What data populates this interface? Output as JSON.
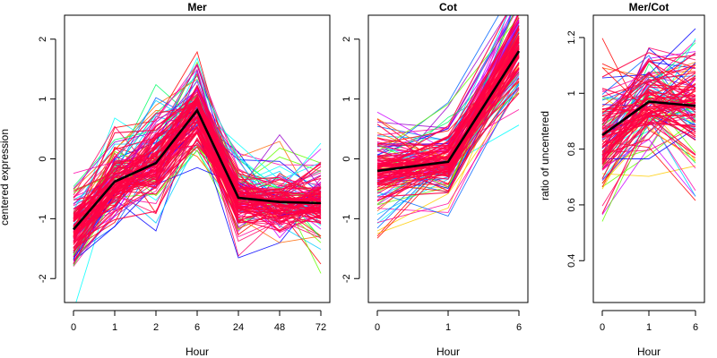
{
  "chart_data": [
    {
      "type": "line",
      "title": "Mer",
      "xlabel": "Hour",
      "ylabel": "centered expression",
      "categories": [
        "0",
        "1",
        "2",
        "6",
        "24",
        "48",
        "72"
      ],
      "ylim": [
        -2.4,
        2.4
      ],
      "yticks": [
        -2,
        -1,
        0,
        1,
        2
      ],
      "series": [
        {
          "name": "",
          "role": "mean",
          "values": [
            -1.18,
            -0.38,
            -0.07,
            0.81,
            -0.65,
            -0.72,
            -0.74
          ]
        }
      ],
      "bundle": {
        "count": 140,
        "colors": [
          "#ff0000",
          "#ff00aa",
          "#ff0066",
          "#cc00ff",
          "#0000ff",
          "#0066ff",
          "#00ccff",
          "#00ffff",
          "#00ff66",
          "#66ff00",
          "#ffcc00",
          "#ff6600",
          "#9900cc",
          "#ff0099"
        ],
        "dense_color": "#ff0044",
        "spread": [
          0.32,
          0.32,
          0.42,
          0.36,
          0.32,
          0.3,
          0.36
        ],
        "seed": 11
      }
    },
    {
      "type": "line",
      "title": "Cot",
      "xlabel": "Hour",
      "ylabel": "",
      "categories": [
        "0",
        "1",
        "6"
      ],
      "ylim": [
        -2.4,
        2.4
      ],
      "yticks": [
        -2,
        -1,
        0,
        1,
        2
      ],
      "series": [
        {
          "name": "",
          "role": "mean",
          "values": [
            -0.2,
            -0.05,
            1.8
          ]
        }
      ],
      "bundle": {
        "count": 140,
        "colors": [
          "#ff0000",
          "#ff00aa",
          "#ff0066",
          "#cc00ff",
          "#0000ff",
          "#0066ff",
          "#00ccff",
          "#00ffff",
          "#00ff66",
          "#66ff00",
          "#ffcc00",
          "#ff6600",
          "#9900cc",
          "#ff0099"
        ],
        "dense_color": "#ff0044",
        "spread": [
          0.36,
          0.3,
          0.42
        ],
        "seed": 23
      }
    },
    {
      "type": "line",
      "title": "Mer/Cot",
      "xlabel": "Hour",
      "ylabel": "ratio of uncentered",
      "categories": [
        "0",
        "1",
        "6"
      ],
      "ylim": [
        0.25,
        1.28
      ],
      "yticks": [
        0.4,
        0.6,
        0.8,
        1.0,
        1.2
      ],
      "series": [
        {
          "name": "",
          "role": "mean",
          "values": [
            0.85,
            0.97,
            0.955
          ]
        }
      ],
      "bundle": {
        "count": 120,
        "colors": [
          "#ff0000",
          "#ff00aa",
          "#ff0066",
          "#cc00ff",
          "#0000ff",
          "#0066ff",
          "#00ccff",
          "#00ffff",
          "#00ff66",
          "#66ff00",
          "#ffcc00",
          "#ff6600",
          "#9900cc",
          "#ff0099"
        ],
        "dense_color": "#ff0044",
        "spread": [
          0.12,
          0.08,
          0.11
        ],
        "seed": 37
      }
    }
  ]
}
